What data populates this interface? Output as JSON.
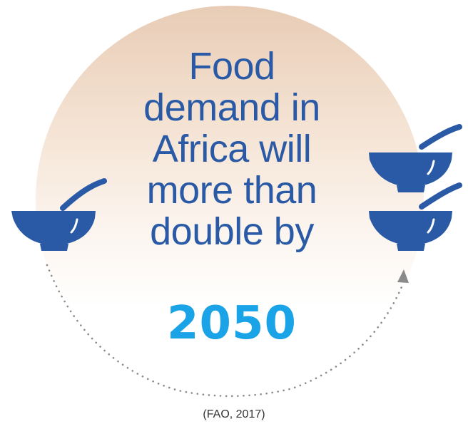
{
  "headline": {
    "lines": [
      "Food",
      "demand in",
      "Africa will",
      "more than",
      "double by"
    ],
    "year": "2050"
  },
  "source": "(FAO, 2017)",
  "colors": {
    "headline": "#2a5aa6",
    "year": "#1aa3e6",
    "bowl": "#2a5aa6",
    "circle_top": "#e8ccb6",
    "dots": "#8a8a8a",
    "arrow": "#8a8a8a"
  },
  "icons": [
    "bowl-with-spoon-icon",
    "arrow-up-icon"
  ]
}
